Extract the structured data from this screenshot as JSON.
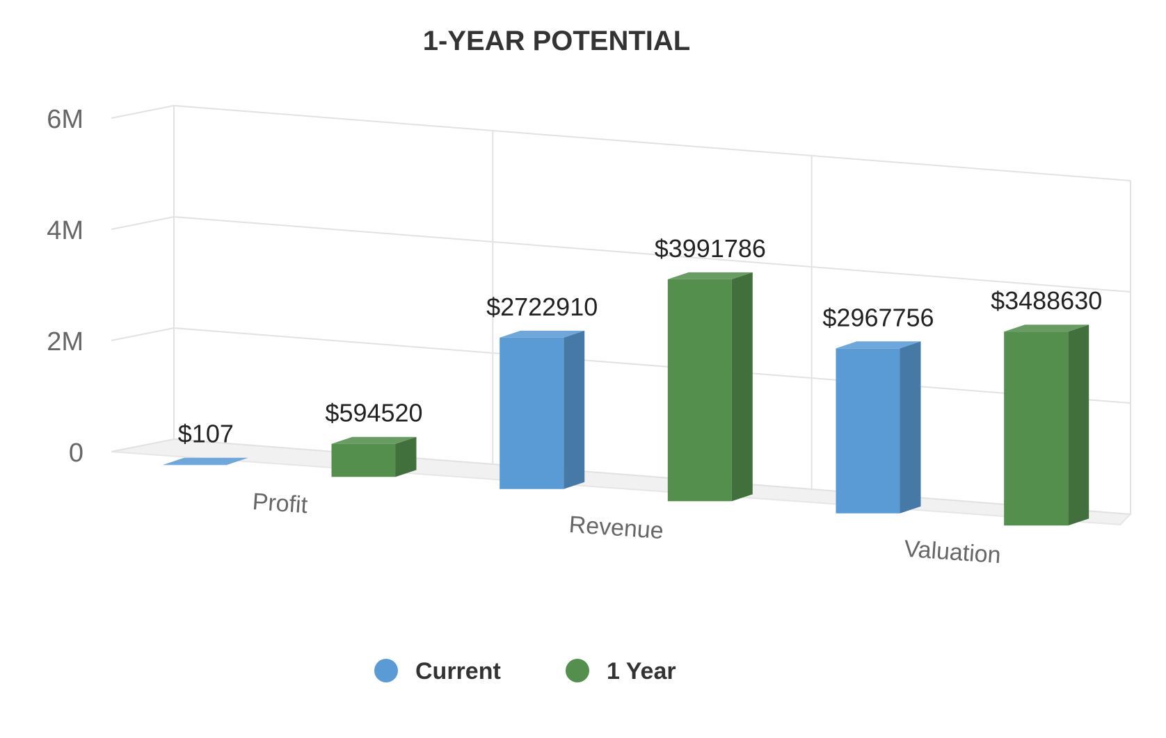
{
  "chart_data": {
    "type": "bar",
    "title": "1-YEAR POTENTIAL",
    "categories": [
      "Profit",
      "Revenue",
      "Valuation"
    ],
    "series": [
      {
        "name": "Current",
        "color": "#5b9bd5",
        "values": [
          107,
          2722910,
          2967756
        ],
        "labels": [
          "$107",
          "$2722910",
          "$2967756"
        ]
      },
      {
        "name": "1 Year",
        "color": "#548f4e",
        "values": [
          594520,
          3991786,
          3488630
        ],
        "labels": [
          "$594520",
          "$3991786",
          "$3488630"
        ]
      }
    ],
    "yticks": [
      {
        "value": 0,
        "label": "0"
      },
      {
        "value": 2000000,
        "label": "2M"
      },
      {
        "value": 4000000,
        "label": "4M"
      },
      {
        "value": 6000000,
        "label": "6M"
      }
    ],
    "ylim": [
      0,
      6000000
    ],
    "grid": true,
    "three_d": true,
    "legend_position": "bottom-center"
  }
}
